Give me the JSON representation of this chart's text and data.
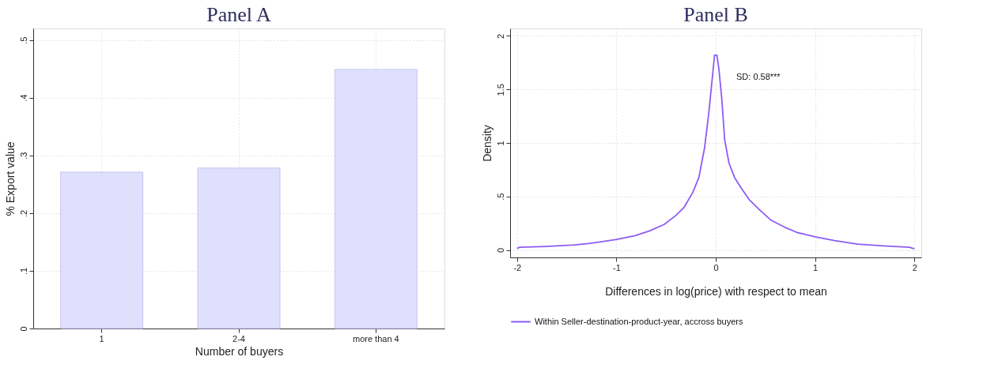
{
  "chart_data": [
    {
      "type": "bar",
      "title": "Panel A",
      "xlabel": "Number of buyers",
      "ylabel": "%  Export value",
      "categories": [
        "1",
        "2-4",
        "more than 4"
      ],
      "series": [
        {
          "color": "#e0e0fc",
          "values": [
            0.271,
            0.278,
            0.449
          ]
        }
      ],
      "ylim": [
        0,
        0.52
      ],
      "yticks": [
        0,
        {
          "value": 0.1,
          "label": ".1"
        },
        {
          "value": 0.2,
          "label": ".2"
        },
        {
          "value": 0.3,
          "label": ".3"
        },
        {
          "value": 0.4,
          "label": ".4"
        },
        {
          "value": 0.5,
          "label": ".5"
        }
      ],
      "grid": true,
      "legend": false
    },
    {
      "type": "line",
      "title": "Panel B",
      "xlabel": "Differences in log(price) with respect to mean",
      "ylabel": "Density",
      "series": [
        {
          "name": "Within Seller-destination-product-year, accross buyers",
          "color": "#8c5cf5",
          "x": [
            -2,
            -1.974,
            -1.71,
            -1.42,
            -1.28,
            -0.994,
            -0.81,
            -0.666,
            -0.52,
            -0.404,
            -0.317,
            -0.23,
            -0.17,
            -0.113,
            -0.07,
            -0.032,
            -0.012,
            0.012,
            0.032,
            0.061,
            0.09,
            0.134,
            0.19,
            0.265,
            0.337,
            0.44,
            0.555,
            0.7,
            0.817,
            1.0,
            1.195,
            1.427,
            1.69,
            1.95,
            2.0
          ],
          "values": [
            0.014,
            0.025,
            0.033,
            0.047,
            0.06,
            0.098,
            0.134,
            0.178,
            0.238,
            0.32,
            0.4,
            0.54,
            0.676,
            0.95,
            1.28,
            1.63,
            1.82,
            1.82,
            1.69,
            1.41,
            1.03,
            0.81,
            0.676,
            0.566,
            0.47,
            0.375,
            0.279,
            0.21,
            0.164,
            0.123,
            0.088,
            0.055,
            0.038,
            0.025,
            0.011
          ]
        }
      ],
      "xlim": [
        -2.07,
        2.07
      ],
      "xticks": [
        -2,
        -1,
        0,
        1,
        2
      ],
      "ylim": [
        -0.07,
        2.07
      ],
      "yticks": [
        0,
        {
          "value": 0.5,
          "label": ".5"
        },
        1,
        1.5,
        2
      ],
      "annotations": [
        "SD: 0.58***"
      ],
      "grid": true,
      "legend": "bottom",
      "marker": "none",
      "line_style": "solid"
    }
  ]
}
